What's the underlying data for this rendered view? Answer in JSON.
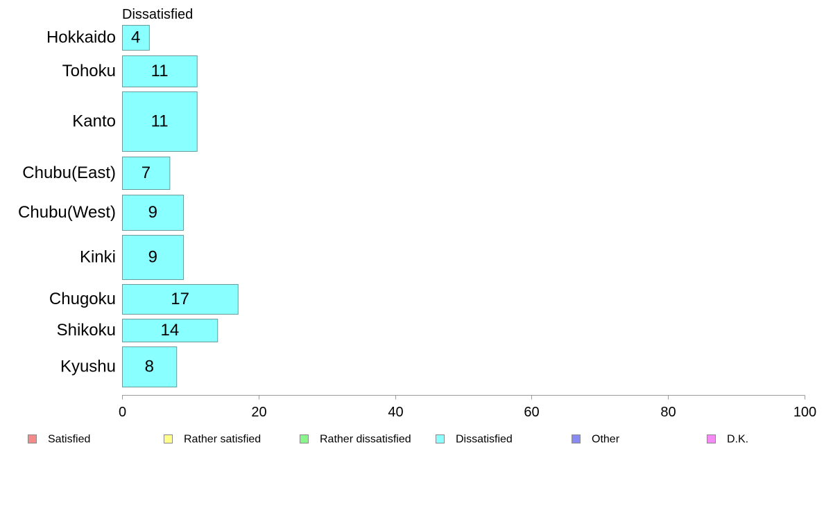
{
  "chart_data": {
    "type": "bar",
    "orientation": "horizontal",
    "title": "Dissatisfied",
    "categories": [
      "Hokkaido",
      "Tohoku",
      "Kanto",
      "Chubu(East)",
      "Chubu(West)",
      "Kinki",
      "Chugoku",
      "Shikoku",
      "Kyushu"
    ],
    "series": [
      {
        "name": "Dissatisfied",
        "color": "#8affff",
        "values": [
          4,
          11,
          11,
          7,
          9,
          9,
          17,
          14,
          8
        ]
      }
    ],
    "xlim": [
      0,
      100
    ],
    "xticks": [
      0,
      20,
      40,
      60,
      80,
      100
    ],
    "grid": false,
    "legend": {
      "placement": "bottom",
      "items": [
        {
          "label": "Satisfied",
          "color": "#f58a8a"
        },
        {
          "label": "Rather satisfied",
          "color": "#ffff8a"
        },
        {
          "label": "Rather dissatisfied",
          "color": "#8af58a"
        },
        {
          "label": "Dissatisfied",
          "color": "#8affff"
        },
        {
          "label": "Other",
          "color": "#8a8af5"
        },
        {
          "label": "D.K.",
          "color": "#f58af5"
        }
      ]
    }
  }
}
